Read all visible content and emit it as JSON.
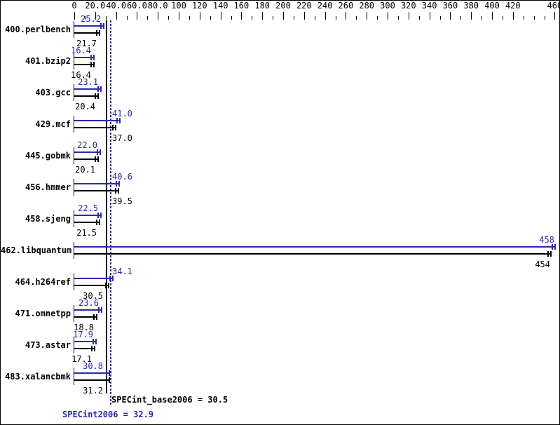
{
  "chart_data": {
    "type": "bar",
    "orientation": "horizontal",
    "axis_position": "top",
    "grid": false,
    "legend": "none",
    "xlim": [
      0,
      460
    ],
    "x_tick_labels": [
      "0",
      "20.0",
      "40.0",
      "60.0",
      "80.0",
      "100",
      "120",
      "140",
      "160",
      "180",
      "200",
      "220",
      "240",
      "260",
      "280",
      "300",
      "320",
      "340",
      "360",
      "380",
      "400",
      "420",
      "460"
    ],
    "x_tick_values": [
      0,
      20,
      40,
      60,
      80,
      100,
      120,
      140,
      160,
      180,
      200,
      220,
      240,
      260,
      280,
      300,
      320,
      340,
      360,
      380,
      400,
      420,
      460
    ],
    "minor_tick_step": 10,
    "categories": [
      "400.perlbench",
      "401.bzip2",
      "403.gcc",
      "429.mcf",
      "445.gobmk",
      "456.hmmer",
      "458.sjeng",
      "462.libquantum",
      "464.h264ref",
      "471.omnetpp",
      "473.astar",
      "483.xalancbmk"
    ],
    "series": [
      {
        "name": "peak",
        "color": "#2828b4",
        "values": [
          25.2,
          16.4,
          23.1,
          41.0,
          22.0,
          40.6,
          22.5,
          458,
          34.1,
          23.6,
          17.9,
          30.8
        ],
        "value_labels": [
          "25.2",
          "16.4",
          "23.1",
          "41.0",
          "22.0",
          "40.6",
          "22.5",
          "458",
          "34.1",
          "23.6",
          "17.9",
          "30.8"
        ]
      },
      {
        "name": "base",
        "color": "#000000",
        "values": [
          21.7,
          16.4,
          20.4,
          37.0,
          20.1,
          39.5,
          21.5,
          454,
          30.5,
          18.8,
          17.1,
          31.2
        ],
        "value_labels": [
          "21.7",
          "16.4",
          "20.4",
          "37.0",
          "20.1",
          "39.5",
          "21.5",
          "454",
          "30.5",
          "18.8",
          "17.1",
          "31.2"
        ]
      }
    ],
    "reference_lines": [
      {
        "label": "SPECint_base2006 = 30.5",
        "value": 30.5,
        "style": "solid",
        "color": "#000000"
      },
      {
        "label": "SPECint2006 = 32.9",
        "value": 32.9,
        "style": "dotted",
        "color": "#2828b4"
      }
    ]
  }
}
